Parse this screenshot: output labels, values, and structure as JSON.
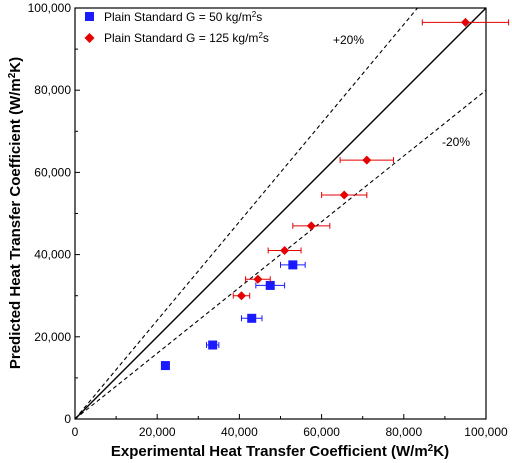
{
  "chart_data": {
    "type": "scatter",
    "xlabel": "Experimental Heat Transfer Coefficient (W/m",
    "xlabel_sup": "2",
    "xlabel_end": "K)",
    "ylabel": "Predicted Heat Transfer Coefficient (W/m",
    "ylabel_sup": "2",
    "ylabel_end": "K)",
    "xlim": [
      0,
      100000
    ],
    "ylim": [
      0,
      100000
    ],
    "xticks": [
      0,
      20000,
      40000,
      60000,
      80000,
      100000
    ],
    "yticks": [
      0,
      20000,
      40000,
      60000,
      80000,
      100000
    ],
    "xtick_labels": [
      "0",
      "20,000",
      "40,000",
      "60,000",
      "80,000",
      "100,000"
    ],
    "ytick_labels": [
      "0",
      "20,000",
      "40,000",
      "60,000",
      "80,000",
      "100,000"
    ],
    "legend_position": "top-left",
    "grid": false,
    "reference_lines": [
      {
        "slope": 1.0,
        "style": "solid",
        "label": ""
      },
      {
        "slope": 1.2,
        "style": "dashed",
        "label": "+20%"
      },
      {
        "slope": 0.8,
        "style": "dashed",
        "label": "-20%"
      }
    ],
    "series": [
      {
        "name_prefix": "Plain Standard G = 50 kg/m",
        "name_sup": "2",
        "name_suffix": "s",
        "marker": "square",
        "color": "#1a1aff",
        "points": [
          {
            "x": 22000,
            "y": 13000,
            "xerr": 500
          },
          {
            "x": 33500,
            "y": 18000,
            "xerr": 1500
          },
          {
            "x": 43000,
            "y": 24500,
            "xerr": 2500
          },
          {
            "x": 47500,
            "y": 32500,
            "xerr": 3500
          },
          {
            "x": 53000,
            "y": 37500,
            "xerr": 3000
          }
        ]
      },
      {
        "name_prefix": "Plain Standard G = 125 kg/m",
        "name_sup": "2",
        "name_suffix": "s",
        "marker": "diamond",
        "color": "#e60000",
        "points": [
          {
            "x": 40500,
            "y": 30000,
            "xerr": 2000
          },
          {
            "x": 44500,
            "y": 34000,
            "xerr": 3000
          },
          {
            "x": 51000,
            "y": 41000,
            "xerr": 4000
          },
          {
            "x": 57500,
            "y": 47000,
            "xerr": 4500
          },
          {
            "x": 65500,
            "y": 54500,
            "xerr": 5500
          },
          {
            "x": 71000,
            "y": 63000,
            "xerr": 6500
          },
          {
            "x": 95000,
            "y": 96500,
            "xerr": 10500
          }
        ]
      }
    ]
  }
}
